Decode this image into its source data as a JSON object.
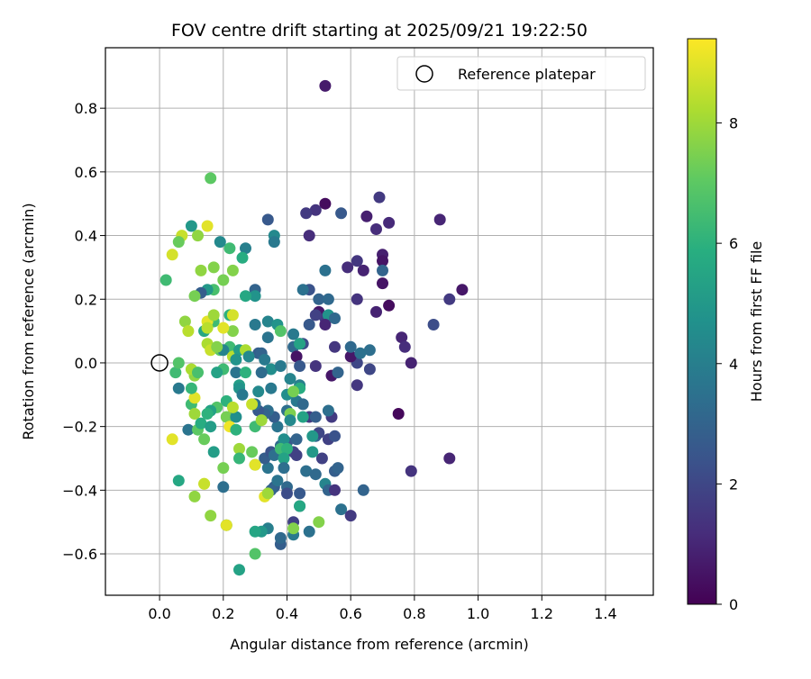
{
  "chart_data": {
    "type": "scatter",
    "title": "FOV centre drift starting at 2025/09/21 19:22:50",
    "xlabel": "Angular distance from reference (arcmin)",
    "ylabel": "Rotation from reference (arcmin)",
    "xlim": [
      -0.17,
      1.55
    ],
    "ylim": [
      -0.73,
      0.99
    ],
    "xticks": [
      0.0,
      0.2,
      0.4,
      0.6,
      0.8,
      1.0,
      1.2,
      1.4
    ],
    "xtick_labels": [
      "0.0",
      "0.2",
      "0.4",
      "0.6",
      "0.8",
      "1.0",
      "1.2",
      "1.4"
    ],
    "yticks": [
      -0.6,
      -0.4,
      -0.2,
      0.0,
      0.2,
      0.4,
      0.6,
      0.8
    ],
    "ytick_labels": [
      "−0.6",
      "−0.4",
      "−0.2",
      "0.0",
      "0.2",
      "0.4",
      "0.6",
      "0.8"
    ],
    "grid": true,
    "legend": {
      "placement": "top-right",
      "entries": [
        {
          "label": "Reference platepar",
          "marker": "hollow-circle"
        }
      ]
    },
    "reference_point": {
      "x": 0.0,
      "y": 0.0
    },
    "colorbar": {
      "label": "Hours from first FF file",
      "range": [
        0,
        9.4
      ],
      "ticks": [
        0,
        2,
        4,
        6,
        8
      ],
      "tick_labels": [
        "0",
        "2",
        "4",
        "6",
        "8"
      ],
      "colormap": "viridis"
    },
    "points": [
      {
        "x": 0.52,
        "y": 0.87,
        "h": 0.7
      },
      {
        "x": 0.69,
        "y": 0.52,
        "h": 1.6
      },
      {
        "x": 0.88,
        "y": 0.45,
        "h": 1.0
      },
      {
        "x": 0.65,
        "y": 0.46,
        "h": 0.8
      },
      {
        "x": 0.72,
        "y": 0.44,
        "h": 1.1
      },
      {
        "x": 0.68,
        "y": 0.42,
        "h": 1.2
      },
      {
        "x": 0.52,
        "y": 0.5,
        "h": 0.3
      },
      {
        "x": 0.49,
        "y": 0.48,
        "h": 1.4
      },
      {
        "x": 0.46,
        "y": 0.47,
        "h": 1.6
      },
      {
        "x": 0.57,
        "y": 0.47,
        "h": 2.6
      },
      {
        "x": 0.47,
        "y": 0.4,
        "h": 1.2
      },
      {
        "x": 0.7,
        "y": 0.34,
        "h": 0.8
      },
      {
        "x": 0.7,
        "y": 0.32,
        "h": 0.5
      },
      {
        "x": 0.62,
        "y": 0.32,
        "h": 1.5
      },
      {
        "x": 0.59,
        "y": 0.3,
        "h": 1.2
      },
      {
        "x": 0.64,
        "y": 0.29,
        "h": 0.9
      },
      {
        "x": 0.7,
        "y": 0.29,
        "h": 3.0
      },
      {
        "x": 0.52,
        "y": 0.29,
        "h": 3.5
      },
      {
        "x": 0.7,
        "y": 0.25,
        "h": 0.5
      },
      {
        "x": 0.95,
        "y": 0.23,
        "h": 0.6
      },
      {
        "x": 0.91,
        "y": 0.2,
        "h": 1.6
      },
      {
        "x": 0.62,
        "y": 0.2,
        "h": 1.4
      },
      {
        "x": 0.68,
        "y": 0.16,
        "h": 0.9
      },
      {
        "x": 0.72,
        "y": 0.18,
        "h": 0.3
      },
      {
        "x": 0.86,
        "y": 0.12,
        "h": 2.2
      },
      {
        "x": 0.76,
        "y": 0.08,
        "h": 1.0
      },
      {
        "x": 0.77,
        "y": 0.05,
        "h": 1.2
      },
      {
        "x": 0.79,
        "y": 0.0,
        "h": 0.9
      },
      {
        "x": 0.75,
        "y": -0.16,
        "h": 0.2
      },
      {
        "x": 0.91,
        "y": -0.3,
        "h": 1.0
      },
      {
        "x": 0.79,
        "y": -0.34,
        "h": 1.4
      },
      {
        "x": 0.66,
        "y": 0.04,
        "h": 3.4
      },
      {
        "x": 0.66,
        "y": -0.02,
        "h": 2.0
      },
      {
        "x": 0.62,
        "y": -0.07,
        "h": 1.5
      },
      {
        "x": 0.62,
        "y": 0.0,
        "h": 2.0
      },
      {
        "x": 0.6,
        "y": 0.02,
        "h": 0.6
      },
      {
        "x": 0.6,
        "y": 0.05,
        "h": 3.2
      },
      {
        "x": 0.63,
        "y": 0.03,
        "h": 3.5
      },
      {
        "x": 0.55,
        "y": 0.05,
        "h": 1.5
      },
      {
        "x": 0.54,
        "y": -0.04,
        "h": 0.6
      },
      {
        "x": 0.56,
        "y": -0.03,
        "h": 3.0
      },
      {
        "x": 0.5,
        "y": 0.16,
        "h": 0.6
      },
      {
        "x": 0.52,
        "y": 0.14,
        "h": 1.5
      },
      {
        "x": 0.53,
        "y": 0.15,
        "h": 4.8
      },
      {
        "x": 0.52,
        "y": 0.12,
        "h": 1.0
      },
      {
        "x": 0.55,
        "y": 0.14,
        "h": 3.2
      },
      {
        "x": 0.5,
        "y": 0.2,
        "h": 3.0
      },
      {
        "x": 0.53,
        "y": 0.2,
        "h": 3.2
      },
      {
        "x": 0.47,
        "y": 0.23,
        "h": 2.4
      },
      {
        "x": 0.45,
        "y": 0.23,
        "h": 3.5
      },
      {
        "x": 0.47,
        "y": 0.12,
        "h": 2.6
      },
      {
        "x": 0.49,
        "y": 0.15,
        "h": 1.8
      },
      {
        "x": 0.49,
        "y": -0.01,
        "h": 1.4
      },
      {
        "x": 0.44,
        "y": 0.06,
        "h": 1.6
      },
      {
        "x": 0.45,
        "y": 0.06,
        "h": 2.2
      },
      {
        "x": 0.42,
        "y": 0.05,
        "h": 3.2
      },
      {
        "x": 0.42,
        "y": 0.09,
        "h": 3.8
      },
      {
        "x": 0.43,
        "y": 0.02,
        "h": 0.5
      },
      {
        "x": 0.44,
        "y": -0.01,
        "h": 2.6
      },
      {
        "x": 0.44,
        "y": -0.07,
        "h": 4.0
      },
      {
        "x": 0.43,
        "y": -0.12,
        "h": 3.8
      },
      {
        "x": 0.45,
        "y": -0.13,
        "h": 3.2
      },
      {
        "x": 0.47,
        "y": -0.17,
        "h": 1.6
      },
      {
        "x": 0.49,
        "y": -0.17,
        "h": 2.8
      },
      {
        "x": 0.49,
        "y": -0.23,
        "h": 3.0
      },
      {
        "x": 0.5,
        "y": -0.22,
        "h": 2.0
      },
      {
        "x": 0.53,
        "y": -0.24,
        "h": 1.8
      },
      {
        "x": 0.54,
        "y": -0.17,
        "h": 1.6
      },
      {
        "x": 0.53,
        "y": -0.15,
        "h": 3.4
      },
      {
        "x": 0.55,
        "y": -0.23,
        "h": 2.4
      },
      {
        "x": 0.51,
        "y": -0.3,
        "h": 1.8
      },
      {
        "x": 0.46,
        "y": -0.34,
        "h": 3.4
      },
      {
        "x": 0.49,
        "y": -0.35,
        "h": 3.2
      },
      {
        "x": 0.52,
        "y": -0.38,
        "h": 4.2
      },
      {
        "x": 0.53,
        "y": -0.4,
        "h": 3.0
      },
      {
        "x": 0.55,
        "y": -0.4,
        "h": 1.4
      },
      {
        "x": 0.55,
        "y": -0.34,
        "h": 2.8
      },
      {
        "x": 0.56,
        "y": -0.33,
        "h": 3.0
      },
      {
        "x": 0.57,
        "y": -0.46,
        "h": 3.5
      },
      {
        "x": 0.6,
        "y": -0.48,
        "h": 1.6
      },
      {
        "x": 0.64,
        "y": -0.4,
        "h": 3.0
      },
      {
        "x": 0.47,
        "y": -0.53,
        "h": 3.5
      },
      {
        "x": 0.42,
        "y": -0.5,
        "h": 1.8
      },
      {
        "x": 0.42,
        "y": -0.54,
        "h": 3.8
      },
      {
        "x": 0.38,
        "y": -0.57,
        "h": 2.8
      },
      {
        "x": 0.38,
        "y": -0.55,
        "h": 3.2
      },
      {
        "x": 0.44,
        "y": -0.45,
        "h": 2.4
      },
      {
        "x": 0.44,
        "y": -0.41,
        "h": 2.6
      },
      {
        "x": 0.4,
        "y": -0.39,
        "h": 3.2
      },
      {
        "x": 0.4,
        "y": -0.41,
        "h": 2.2
      },
      {
        "x": 0.36,
        "y": -0.39,
        "h": 2.8
      },
      {
        "x": 0.37,
        "y": -0.37,
        "h": 3.6
      },
      {
        "x": 0.35,
        "y": -0.4,
        "h": 3.0
      },
      {
        "x": 0.34,
        "y": -0.52,
        "h": 4.0
      },
      {
        "x": 0.32,
        "y": -0.53,
        "h": 5.0
      },
      {
        "x": 0.3,
        "y": -0.53,
        "h": 5.5
      },
      {
        "x": 0.34,
        "y": -0.33,
        "h": 3.6
      },
      {
        "x": 0.33,
        "y": -0.3,
        "h": 2.8
      },
      {
        "x": 0.35,
        "y": -0.28,
        "h": 2.4
      },
      {
        "x": 0.36,
        "y": -0.29,
        "h": 3.4
      },
      {
        "x": 0.38,
        "y": -0.26,
        "h": 3.2
      },
      {
        "x": 0.4,
        "y": -0.25,
        "h": 2.6
      },
      {
        "x": 0.42,
        "y": -0.28,
        "h": 2.0
      },
      {
        "x": 0.43,
        "y": -0.29,
        "h": 1.8
      },
      {
        "x": 0.43,
        "y": -0.24,
        "h": 3.0
      },
      {
        "x": 0.37,
        "y": -0.2,
        "h": 3.6
      },
      {
        "x": 0.36,
        "y": -0.17,
        "h": 2.8
      },
      {
        "x": 0.34,
        "y": -0.15,
        "h": 3.4
      },
      {
        "x": 0.33,
        "y": -0.16,
        "h": 3.0
      },
      {
        "x": 0.31,
        "y": -0.15,
        "h": 2.6
      },
      {
        "x": 0.3,
        "y": -0.13,
        "h": 3.5
      },
      {
        "x": 0.31,
        "y": -0.09,
        "h": 4.4
      },
      {
        "x": 0.35,
        "y": -0.08,
        "h": 3.8
      },
      {
        "x": 0.35,
        "y": -0.02,
        "h": 4.6
      },
      {
        "x": 0.32,
        "y": -0.03,
        "h": 3.3
      },
      {
        "x": 0.31,
        "y": 0.03,
        "h": 2.8
      },
      {
        "x": 0.32,
        "y": 0.03,
        "h": 3.0
      },
      {
        "x": 0.33,
        "y": 0.01,
        "h": 3.8
      },
      {
        "x": 0.34,
        "y": 0.08,
        "h": 3.6
      },
      {
        "x": 0.3,
        "y": 0.12,
        "h": 3.8
      },
      {
        "x": 0.34,
        "y": 0.13,
        "h": 4.2
      },
      {
        "x": 0.37,
        "y": 0.12,
        "h": 4.8
      },
      {
        "x": 0.38,
        "y": 0.1,
        "h": 6.8
      },
      {
        "x": 0.38,
        "y": -0.01,
        "h": 3.8
      },
      {
        "x": 0.41,
        "y": -0.05,
        "h": 4.2
      },
      {
        "x": 0.4,
        "y": -0.1,
        "h": 4.6
      },
      {
        "x": 0.4,
        "y": -0.15,
        "h": 3.4
      },
      {
        "x": 0.41,
        "y": -0.16,
        "h": 7.5
      },
      {
        "x": 0.41,
        "y": -0.18,
        "h": 4.4
      },
      {
        "x": 0.39,
        "y": -0.24,
        "h": 4.6
      },
      {
        "x": 0.38,
        "y": -0.27,
        "h": 6.4
      },
      {
        "x": 0.4,
        "y": -0.27,
        "h": 6.0
      },
      {
        "x": 0.39,
        "y": -0.3,
        "h": 5.4
      },
      {
        "x": 0.39,
        "y": -0.33,
        "h": 3.4
      },
      {
        "x": 0.42,
        "y": -0.52,
        "h": 7.6
      },
      {
        "x": 0.44,
        "y": -0.45,
        "h": 5.6
      },
      {
        "x": 0.5,
        "y": -0.5,
        "h": 7.6
      },
      {
        "x": 0.48,
        "y": -0.28,
        "h": 5.0
      },
      {
        "x": 0.48,
        "y": -0.23,
        "h": 5.0
      },
      {
        "x": 0.45,
        "y": -0.17,
        "h": 5.4
      },
      {
        "x": 0.44,
        "y": -0.08,
        "h": 5.8
      },
      {
        "x": 0.42,
        "y": -0.09,
        "h": 7.4
      },
      {
        "x": 0.44,
        "y": 0.06,
        "h": 5.4
      },
      {
        "x": 0.36,
        "y": 0.4,
        "h": 4.4
      },
      {
        "x": 0.36,
        "y": 0.38,
        "h": 3.8
      },
      {
        "x": 0.34,
        "y": 0.45,
        "h": 2.6
      },
      {
        "x": 0.3,
        "y": 0.23,
        "h": 3.0
      },
      {
        "x": 0.3,
        "y": 0.21,
        "h": 4.8
      },
      {
        "x": 0.27,
        "y": 0.21,
        "h": 5.6
      },
      {
        "x": 0.27,
        "y": 0.36,
        "h": 4.0
      },
      {
        "x": 0.26,
        "y": 0.33,
        "h": 5.8
      },
      {
        "x": 0.22,
        "y": 0.36,
        "h": 6.4
      },
      {
        "x": 0.19,
        "y": 0.38,
        "h": 4.4
      },
      {
        "x": 0.23,
        "y": 0.29,
        "h": 7.6
      },
      {
        "x": 0.2,
        "y": 0.26,
        "h": 7.4
      },
      {
        "x": 0.17,
        "y": 0.23,
        "h": 6.6
      },
      {
        "x": 0.15,
        "y": 0.23,
        "h": 5.0
      },
      {
        "x": 0.13,
        "y": 0.22,
        "h": 2.8
      },
      {
        "x": 0.11,
        "y": 0.21,
        "h": 7.4
      },
      {
        "x": 0.13,
        "y": 0.29,
        "h": 7.8
      },
      {
        "x": 0.17,
        "y": 0.3,
        "h": 7.6
      },
      {
        "x": 0.16,
        "y": 0.58,
        "h": 7.0
      },
      {
        "x": 0.15,
        "y": 0.43,
        "h": 9.0
      },
      {
        "x": 0.1,
        "y": 0.43,
        "h": 5.0
      },
      {
        "x": 0.12,
        "y": 0.4,
        "h": 7.8
      },
      {
        "x": 0.07,
        "y": 0.4,
        "h": 8.6
      },
      {
        "x": 0.06,
        "y": 0.38,
        "h": 7.2
      },
      {
        "x": 0.04,
        "y": 0.34,
        "h": 8.8
      },
      {
        "x": 0.02,
        "y": 0.26,
        "h": 6.4
      },
      {
        "x": 0.22,
        "y": 0.15,
        "h": 6.0
      },
      {
        "x": 0.23,
        "y": 0.15,
        "h": 8.8
      },
      {
        "x": 0.23,
        "y": 0.1,
        "h": 7.6
      },
      {
        "x": 0.2,
        "y": 0.11,
        "h": 9.0
      },
      {
        "x": 0.17,
        "y": 0.13,
        "h": 6.4
      },
      {
        "x": 0.15,
        "y": 0.13,
        "h": 9.0
      },
      {
        "x": 0.14,
        "y": 0.1,
        "h": 5.6
      },
      {
        "x": 0.08,
        "y": 0.13,
        "h": 7.8
      },
      {
        "x": 0.09,
        "y": 0.1,
        "h": 8.4
      },
      {
        "x": 0.15,
        "y": 0.06,
        "h": 8.2
      },
      {
        "x": 0.16,
        "y": 0.04,
        "h": 8.6
      },
      {
        "x": 0.19,
        "y": 0.04,
        "h": 7.0
      },
      {
        "x": 0.22,
        "y": 0.05,
        "h": 6.4
      },
      {
        "x": 0.2,
        "y": 0.04,
        "h": 4.2
      },
      {
        "x": 0.23,
        "y": 0.02,
        "h": 8.4
      },
      {
        "x": 0.25,
        "y": 0.04,
        "h": 5.2
      },
      {
        "x": 0.27,
        "y": 0.04,
        "h": 8.2
      },
      {
        "x": 0.24,
        "y": 0.01,
        "h": 4.8
      },
      {
        "x": 0.28,
        "y": 0.02,
        "h": 4.4
      },
      {
        "x": 0.2,
        "y": -0.02,
        "h": 6.4
      },
      {
        "x": 0.18,
        "y": -0.03,
        "h": 5.4
      },
      {
        "x": 0.24,
        "y": -0.03,
        "h": 3.6
      },
      {
        "x": 0.27,
        "y": -0.03,
        "h": 6.0
      },
      {
        "x": 0.25,
        "y": -0.07,
        "h": 5.2
      },
      {
        "x": 0.25,
        "y": -0.08,
        "h": 4.8
      },
      {
        "x": 0.26,
        "y": -0.1,
        "h": 3.8
      },
      {
        "x": 0.21,
        "y": -0.12,
        "h": 6.0
      },
      {
        "x": 0.18,
        "y": -0.14,
        "h": 6.8
      },
      {
        "x": 0.16,
        "y": -0.15,
        "h": 5.4
      },
      {
        "x": 0.15,
        "y": -0.16,
        "h": 6.0
      },
      {
        "x": 0.1,
        "y": -0.13,
        "h": 6.4
      },
      {
        "x": 0.11,
        "y": -0.16,
        "h": 8.0
      },
      {
        "x": 0.14,
        "y": -0.24,
        "h": 7.2
      },
      {
        "x": 0.09,
        "y": -0.21,
        "h": 3.6
      },
      {
        "x": 0.12,
        "y": -0.21,
        "h": 7.0
      },
      {
        "x": 0.13,
        "y": -0.19,
        "h": 5.8
      },
      {
        "x": 0.16,
        "y": -0.2,
        "h": 5.2
      },
      {
        "x": 0.22,
        "y": -0.17,
        "h": 4.0
      },
      {
        "x": 0.21,
        "y": -0.17,
        "h": 7.4
      },
      {
        "x": 0.24,
        "y": -0.17,
        "h": 4.6
      },
      {
        "x": 0.23,
        "y": -0.14,
        "h": 8.4
      },
      {
        "x": 0.22,
        "y": -0.2,
        "h": 9.2
      },
      {
        "x": 0.24,
        "y": -0.21,
        "h": 6.0
      },
      {
        "x": 0.25,
        "y": -0.27,
        "h": 8.0
      },
      {
        "x": 0.25,
        "y": -0.3,
        "h": 6.2
      },
      {
        "x": 0.29,
        "y": -0.28,
        "h": 7.2
      },
      {
        "x": 0.3,
        "y": -0.32,
        "h": 6.8
      },
      {
        "x": 0.3,
        "y": -0.32,
        "h": 9.0
      },
      {
        "x": 0.3,
        "y": -0.2,
        "h": 6.4
      },
      {
        "x": 0.32,
        "y": -0.18,
        "h": 8.0
      },
      {
        "x": 0.29,
        "y": -0.13,
        "h": 8.6
      },
      {
        "x": 0.33,
        "y": -0.42,
        "h": 9.0
      },
      {
        "x": 0.34,
        "y": -0.41,
        "h": 8.0
      },
      {
        "x": 0.2,
        "y": -0.39,
        "h": 3.4
      },
      {
        "x": 0.2,
        "y": -0.33,
        "h": 7.4
      },
      {
        "x": 0.17,
        "y": -0.28,
        "h": 5.2
      },
      {
        "x": 0.14,
        "y": -0.38,
        "h": 9.2
      },
      {
        "x": 0.14,
        "y": -0.38,
        "h": 8.6
      },
      {
        "x": 0.11,
        "y": -0.42,
        "h": 7.8
      },
      {
        "x": 0.06,
        "y": -0.37,
        "h": 5.6
      },
      {
        "x": 0.04,
        "y": -0.24,
        "h": 9.0
      },
      {
        "x": 0.16,
        "y": -0.48,
        "h": 7.8
      },
      {
        "x": 0.21,
        "y": -0.51,
        "h": 5.2
      },
      {
        "x": 0.21,
        "y": -0.51,
        "h": 9.0
      },
      {
        "x": 0.25,
        "y": -0.65,
        "h": 5.4
      },
      {
        "x": 0.3,
        "y": -0.6,
        "h": 6.8
      },
      {
        "x": 0.11,
        "y": -0.11,
        "h": 9.0
      },
      {
        "x": 0.05,
        "y": -0.03,
        "h": 6.4
      },
      {
        "x": 0.06,
        "y": 0.0,
        "h": 6.8
      },
      {
        "x": 0.06,
        "y": -0.08,
        "h": 3.8
      },
      {
        "x": 0.1,
        "y": -0.08,
        "h": 6.2
      },
      {
        "x": 0.11,
        "y": -0.04,
        "h": 7.8
      },
      {
        "x": 0.1,
        "y": -0.02,
        "h": 8.2
      },
      {
        "x": 0.12,
        "y": -0.03,
        "h": 6.6
      },
      {
        "x": 0.15,
        "y": 0.11,
        "h": 8.4
      },
      {
        "x": 0.17,
        "y": 0.15,
        "h": 8.0
      },
      {
        "x": 0.18,
        "y": 0.05,
        "h": 7.6
      }
    ]
  }
}
